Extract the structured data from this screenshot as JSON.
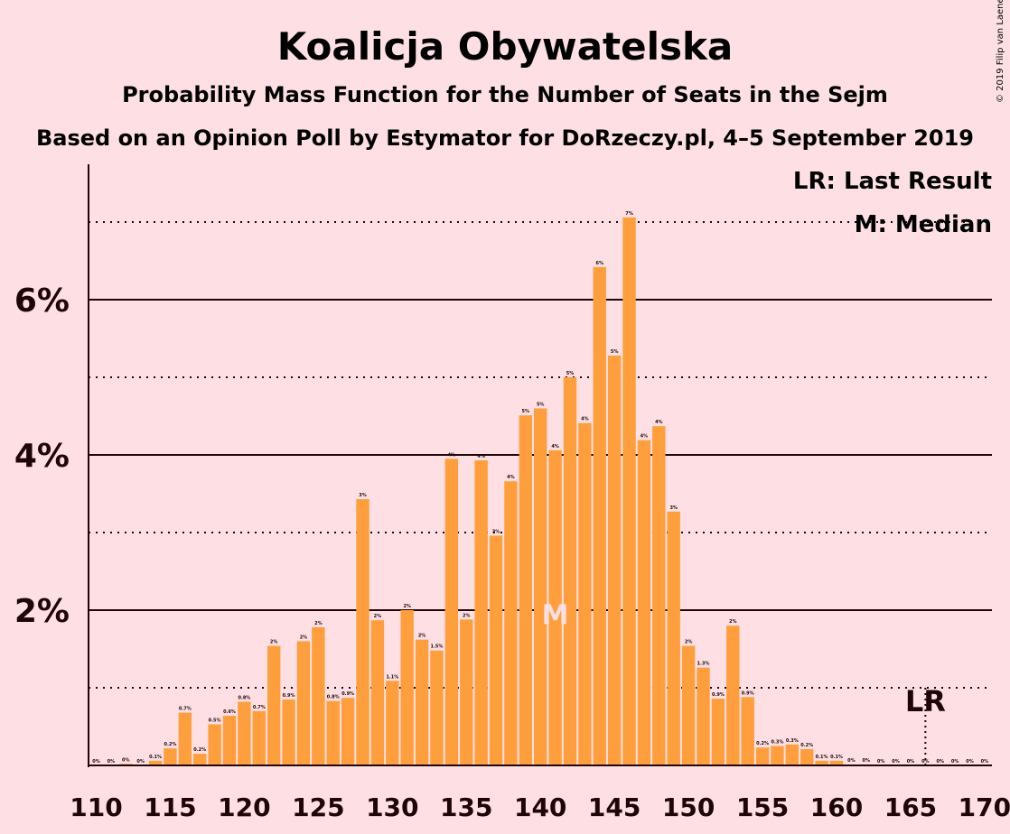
{
  "title": "Koalicja Obywatelska",
  "subtitle": "Probability Mass Function for the Number of Seats in the Sejm",
  "subtitle2": "Based on an Opinion Poll by Estymator for DoRzeczy.pl, 4–5 September 2019",
  "copyright": "© 2019 Filip van Laenen",
  "legend": {
    "last_result": "LR: Last Result",
    "median": "M: Median"
  },
  "colors": {
    "background": "#fee0e4",
    "bar": "#ff9e3d",
    "text": "#1e0508"
  },
  "chart_data": {
    "type": "bar",
    "xlabel": "",
    "ylabel": "",
    "x": [
      110,
      111,
      112,
      113,
      114,
      115,
      116,
      117,
      118,
      119,
      120,
      121,
      122,
      123,
      124,
      125,
      126,
      127,
      128,
      129,
      130,
      131,
      132,
      133,
      134,
      135,
      136,
      137,
      138,
      139,
      140,
      141,
      142,
      143,
      144,
      145,
      146,
      147,
      148,
      149,
      150,
      151,
      152,
      153,
      154,
      155,
      156,
      157,
      158,
      159,
      160,
      161,
      162,
      163,
      164,
      165,
      166,
      167,
      168,
      169,
      170
    ],
    "values": [
      0,
      0,
      0.02,
      0,
      0.06,
      0.22,
      0.68,
      0.15,
      0.53,
      0.64,
      0.82,
      0.7,
      1.54,
      0.85,
      1.6,
      1.78,
      0.83,
      0.87,
      3.43,
      1.87,
      1.09,
      2.0,
      1.62,
      1.48,
      3.95,
      1.88,
      3.93,
      2.96,
      3.66,
      4.51,
      4.6,
      4.06,
      5.0,
      4.41,
      6.42,
      5.28,
      7.06,
      4.19,
      4.37,
      3.27,
      1.54,
      1.26,
      0.86,
      1.8,
      0.88,
      0.23,
      0.25,
      0.27,
      0.21,
      0.06,
      0.06,
      0.01,
      0.01,
      0,
      0,
      0,
      0,
      0,
      0,
      0,
      0
    ],
    "bar_labels": [
      "0%",
      "0%",
      "0%",
      "0%",
      "0.1%",
      "0.2%",
      "0.7%",
      "0.2%",
      "0.5%",
      "0.6%",
      "0.8%",
      "0.7%",
      "2%",
      "0.9%",
      "2%",
      "2%",
      "0.8%",
      "0.9%",
      "3%",
      "2%",
      "1.1%",
      "2%",
      "2%",
      "1.5%",
      "4%",
      "2%",
      "4%",
      "3%",
      "4%",
      "5%",
      "5%",
      "4%",
      "5%",
      "4%",
      "6%",
      "5%",
      "7%",
      "4%",
      "4%",
      "3%",
      "2%",
      "1.3%",
      "0.9%",
      "2%",
      "0.9%",
      "0.2%",
      "0.3%",
      "0.3%",
      "0.2%",
      "0.1%",
      "0.1%",
      "0%",
      "0%",
      "0%",
      "0%",
      "0%",
      "0%",
      "0%",
      "0%",
      "0%",
      "0%"
    ],
    "xticks": [
      "110",
      "115",
      "120",
      "125",
      "130",
      "135",
      "140",
      "145",
      "150",
      "155",
      "160",
      "165",
      "170"
    ],
    "yticks": [
      "2%",
      "4%",
      "6%"
    ],
    "ylim": [
      0,
      7.6
    ],
    "solid_gridlines": [
      2,
      4,
      6
    ],
    "dotted_gridlines": [
      1,
      3,
      5,
      7
    ],
    "median_seat": 141,
    "median_label": "M",
    "last_result_seat": 166,
    "last_result_label": "LR"
  }
}
